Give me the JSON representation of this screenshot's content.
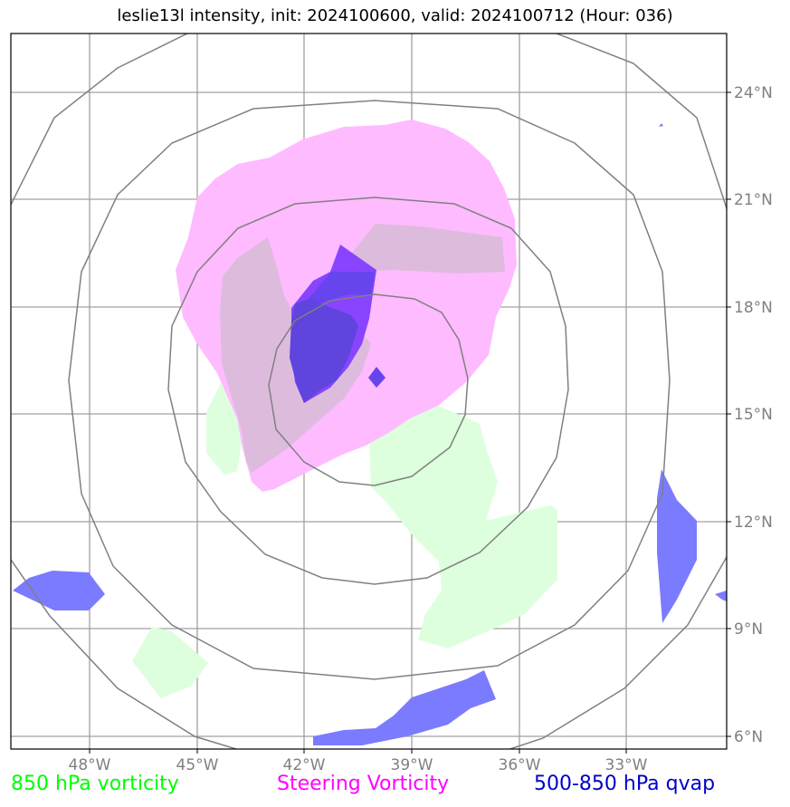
{
  "title": "leslie13l intensity, init: 2024100600, valid: 2024100712 (Hour: 036)",
  "map": {
    "lat_labels": [
      "24°N",
      "21°N",
      "18°N",
      "15°N",
      "12°N",
      "9°N",
      "6°N"
    ],
    "lon_labels": [
      "48°W",
      "45°W",
      "42°W",
      "39°W",
      "36°W",
      "33°W"
    ],
    "gridline_color": "#a0a0a0",
    "ring_color": "#808080"
  },
  "legend": {
    "vorticity_850": {
      "label": "850 hPa vorticity",
      "color": "#00ff00",
      "fill": "#ddffdd"
    },
    "steering_vorticity": {
      "label": "Steering Vorticity",
      "color": "#ff00ff",
      "fill": "#ffbbff"
    },
    "qvap": {
      "label": "500-850 hPa qvap",
      "color": "#0000cc",
      "fill": "#7b7bff"
    }
  }
}
